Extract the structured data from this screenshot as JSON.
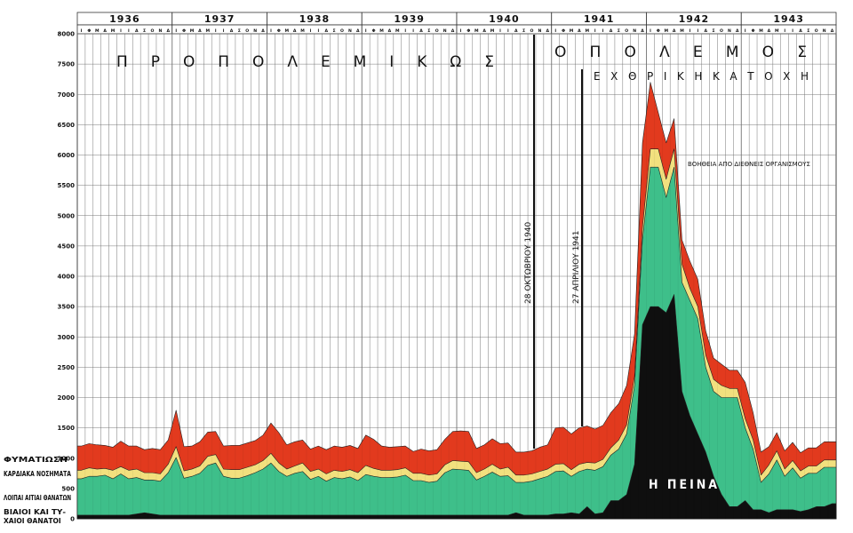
{
  "colors": {
    "tb": "#e23a1e",
    "cardiac": "#f2e07e",
    "other": "#3ebf8a",
    "violent": "#0f0f0f",
    "grid": "#7a7a7a",
    "text": "#111111"
  },
  "legend": [
    {
      "key": "tb",
      "label": "ΦΥΜΑΤΙΩΣΗ"
    },
    {
      "key": "cardiac",
      "label": "ΚΑΡΔΙΑΚΑ ΝΟΣΗΜΑΤΑ"
    },
    {
      "key": "other",
      "label": "ΛΟΙΠΑΙ ΑΙΤΙΑΙ ΘΑΝΑΤΩΝ"
    },
    {
      "key": "violent",
      "label": "ΒΙΑΙΟΙ ΚΑΙ ΤΥ-",
      "label2": "ΧΑΙΟΙ ΘΑΝΑΤΟΙ"
    }
  ],
  "annotations": {
    "prewar": "Π Ρ Ο Π Ο Λ Ε Μ Ι Κ Ω Σ",
    "war": "Ο   Π Ο Λ Ε Μ Ο Σ",
    "occupation": "Ε Χ Θ Ρ Ι Κ Η   Κ Α Τ Ο Χ Η",
    "aid": "ΒΟΗΘΕΙΑ ΑΠΟ ΔΙΕΘΝΕΙΣ ΟΡΓΑΝΙΣΜΟΥΣ",
    "date1": "28 ΟΚΤΩΒΡΙΟΥ 1940",
    "date2": "27 ΑΠΡΙΛΙΟΥ 1941",
    "hunger": "Η ΠΕΙΝΑ"
  },
  "chart_data": {
    "type": "area",
    "stacked": true,
    "ylim": [
      0,
      8000
    ],
    "yticks": [
      0,
      500,
      1000,
      1500,
      2000,
      2500,
      3000,
      3500,
      4000,
      4500,
      5000,
      5500,
      6000,
      6500,
      7000,
      7500,
      8000
    ],
    "years": [
      "1936",
      "1937",
      "1938",
      "1939",
      "1940",
      "1941",
      "1942",
      "1943"
    ],
    "month_letters": [
      "Ι",
      "Φ",
      "Μ",
      "Α",
      "Μ",
      "Ι",
      "Ι",
      "Α",
      "Σ",
      "Ο",
      "Ν",
      "Δ"
    ],
    "series": [
      {
        "name": "ΒΙΑΙΟΙ ΚΑΙ ΤΥΧΑΙΟΙ ΘΑΝΑΤΟΙ",
        "key": "violent",
        "values": [
          60,
          60,
          60,
          60,
          60,
          60,
          60,
          80,
          100,
          80,
          60,
          60,
          60,
          60,
          60,
          60,
          60,
          60,
          60,
          60,
          60,
          60,
          60,
          60,
          60,
          60,
          60,
          60,
          60,
          60,
          60,
          60,
          60,
          60,
          60,
          60,
          60,
          60,
          60,
          60,
          60,
          60,
          60,
          60,
          60,
          60,
          60,
          60,
          60,
          60,
          60,
          60,
          60,
          60,
          60,
          100,
          60,
          60,
          60,
          60,
          80,
          80,
          100,
          80,
          200,
          80,
          100,
          300,
          300,
          400,
          900,
          3200,
          3500,
          3500,
          3400,
          3700,
          2100,
          1700,
          1400,
          1100,
          700,
          400,
          200,
          200,
          300,
          150,
          150,
          100,
          150,
          150,
          150,
          120,
          150,
          200,
          200,
          250
        ]
      },
      {
        "name": "ΛΟΙΠΑΙ ΑΙΤΙΑΙ ΘΑΝΑΤΩΝ",
        "key": "other",
        "values": [
          600,
          640,
          640,
          660,
          600,
          680,
          600,
          600,
          540,
          560,
          560,
          700,
          950,
          610,
          640,
          690,
          820,
          860,
          640,
          610,
          610,
          650,
          700,
          760,
          860,
          720,
          640,
          690,
          720,
          590,
          640,
          560,
          620,
          600,
          630,
          570,
          670,
          640,
          620,
          620,
          630,
          660,
          570,
          570,
          540,
          560,
          700,
          760,
          750,
          740,
          580,
          640,
          710,
          640,
          650,
          500,
          540,
          560,
          600,
          640,
          700,
          710,
          600,
          700,
          620,
          720,
          760,
          750,
          850,
          1000,
          1300,
          1400,
          2300,
          2300,
          1900,
          2100,
          1800,
          1900,
          1900,
          1400,
          1400,
          1600,
          1800,
          1800,
          1200,
          1000,
          450,
          640,
          820,
          550,
          690,
          550,
          600,
          550,
          650,
          600
        ]
      },
      {
        "name": "ΚΑΡΔΙΑΚΑ ΝΟΣΗΜΑΤΑ",
        "key": "cardiac",
        "values": [
          140,
          140,
          120,
          110,
          140,
          120,
          140,
          140,
          120,
          120,
          120,
          140,
          180,
          120,
          120,
          120,
          150,
          140,
          120,
          140,
          140,
          140,
          130,
          140,
          160,
          140,
          120,
          120,
          140,
          130,
          120,
          120,
          120,
          120,
          120,
          130,
          150,
          130,
          120,
          120,
          120,
          120,
          120,
          120,
          120,
          120,
          130,
          140,
          140,
          140,
          120,
          120,
          130,
          120,
          140,
          120,
          120,
          120,
          120,
          120,
          120,
          120,
          110,
          120,
          110,
          120,
          120,
          120,
          150,
          150,
          150,
          200,
          300,
          300,
          300,
          300,
          300,
          200,
          200,
          200,
          200,
          200,
          150,
          150,
          150,
          150,
          120,
          150,
          150,
          120,
          120,
          120,
          120,
          120,
          120,
          120
        ]
      },
      {
        "name": "ΦΥΜΑΤΙΩΣΗ",
        "key": "tb",
        "values": [
          400,
          400,
          400,
          380,
          380,
          420,
          400,
          380,
          380,
          400,
          400,
          400,
          600,
          400,
          380,
          400,
          400,
          380,
          380,
          400,
          400,
          400,
          400,
          420,
          500,
          500,
          400,
          400,
          380,
          370,
          380,
          400,
          400,
          400,
          400,
          400,
          500,
          480,
          400,
          380,
          380,
          360,
          360,
          400,
          400,
          400,
          420,
          480,
          500,
          500,
          400,
          400,
          420,
          420,
          400,
          380,
          380,
          380,
          400,
          400,
          600,
          600,
          590,
          600,
          600,
          560,
          560,
          580,
          600,
          650,
          700,
          1400,
          1100,
          600,
          600,
          500,
          400,
          450,
          450,
          400,
          350,
          350,
          300,
          300,
          600,
          450,
          380,
          300,
          300,
          300,
          300,
          300,
          300,
          300,
          300,
          300
        ]
      }
    ]
  }
}
